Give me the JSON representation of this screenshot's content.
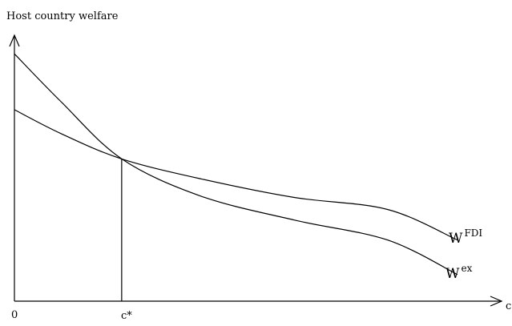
{
  "chart_data": {
    "type": "line",
    "title": "",
    "ylabel": "Host country welfare",
    "xlabel": "c",
    "origin_label": "0",
    "threshold_label": "c*",
    "colors": {
      "axes": "#000000",
      "lines": "#000000"
    },
    "xlim": [
      0,
      10
    ],
    "ylim": [
      0,
      10
    ],
    "grid": false,
    "legend": "none",
    "threshold_x": 2.3,
    "series": [
      {
        "label_main": "W",
        "label_sup": "FDI",
        "x": [
          0,
          1,
          2.3,
          4,
          6,
          8,
          9.5
        ],
        "y": [
          7.2,
          6.3,
          5.35,
          4.6,
          3.9,
          3.45,
          2.3
        ]
      },
      {
        "label_main": "W",
        "label_sup": "ex",
        "x": [
          0,
          1,
          2.3,
          4,
          6,
          8,
          9.5
        ],
        "y": [
          9.3,
          7.5,
          5.35,
          3.95,
          3.05,
          2.3,
          1.0
        ]
      }
    ]
  }
}
